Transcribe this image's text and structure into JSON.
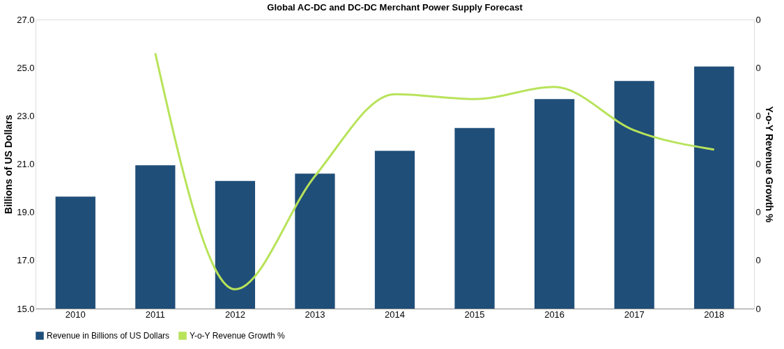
{
  "chart_data": {
    "type": "bar",
    "title": "Global AC-DC  and DC-DC  Merchant Power Supply Forecast",
    "categories": [
      "2010",
      "2011",
      "2012",
      "2013",
      "2014",
      "2015",
      "2016",
      "2017",
      "2018"
    ],
    "ylabel": "Billions of US Dollars",
    "y2label": "Y-o-Y Revenue Growth %",
    "ylim": [
      15,
      27
    ],
    "yticks": [
      {
        "value": 15,
        "label": "15.0"
      },
      {
        "value": 17,
        "label": "17.0"
      },
      {
        "value": 19,
        "label": "19.0"
      },
      {
        "value": 21,
        "label": "21.0"
      },
      {
        "value": 23,
        "label": "23.0"
      },
      {
        "value": 25,
        "label": "25.0"
      },
      {
        "value": 27,
        "label": "27.0"
      }
    ],
    "y2lim": [
      -0.04,
      0.08
    ],
    "y2ticks": [
      {
        "value": -0.04,
        "label": "0"
      },
      {
        "value": -0.02,
        "label": "0"
      },
      {
        "value": 0,
        "label": "0"
      },
      {
        "value": 0.02,
        "label": "0"
      },
      {
        "value": 0.04,
        "label": "0"
      },
      {
        "value": 0.06,
        "label": "0"
      },
      {
        "value": 0.08,
        "label": "0"
      }
    ],
    "grid": false,
    "legend": "bottom",
    "series": [
      {
        "name": "Revenue in Billions of US Dollars",
        "color": "#1f4e79",
        "values": [
          19.65,
          20.95,
          20.3,
          20.6,
          21.55,
          22.5,
          23.7,
          24.45,
          25.05
        ]
      },
      {
        "name": "Y-o-Y Revenue Growth %",
        "type": "line",
        "axis": "y2",
        "color": "#b8e35a",
        "values": [
          null,
          0.066,
          -0.032,
          0.015,
          0.049,
          0.047,
          0.052,
          0.034,
          0.026
        ]
      }
    ]
  }
}
